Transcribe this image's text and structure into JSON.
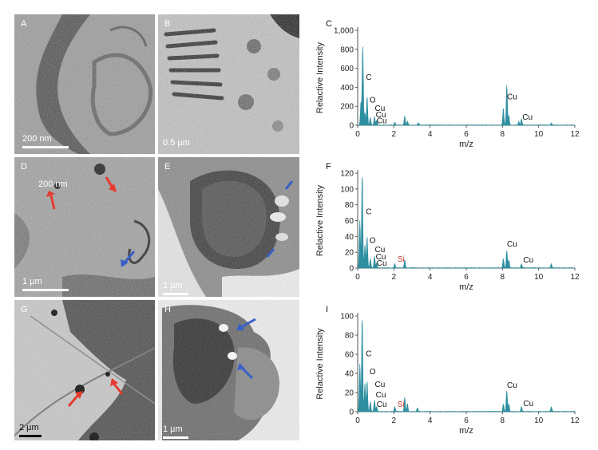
{
  "micrographs": [
    {
      "label": "A",
      "scale": "200 nm"
    },
    {
      "label": "B",
      "scale": "0.5 µm"
    },
    {
      "label": "D",
      "scale": "1 µm",
      "overlay": "200 nm"
    },
    {
      "label": "E",
      "scale": "1 µm"
    },
    {
      "label": "G",
      "scale": "2 µm"
    },
    {
      "label": "H",
      "scale": "1 µm"
    }
  ],
  "colors": {
    "spectrum": "#2e8fa0",
    "red_arrow": "#e53b2f",
    "blue_arrow": "#3a5fc7",
    "si_label": "#c0392b",
    "axis": "#555555"
  },
  "chart_data": [
    {
      "type": "area",
      "panel": "C",
      "xlabel": "m/z",
      "ylabel": "Relactive Intensity",
      "xlim": [
        0,
        12
      ],
      "ylim": [
        0,
        1000
      ],
      "xticks": [
        0,
        2,
        4,
        6,
        8,
        10,
        12
      ],
      "yticks": [
        "0",
        "200",
        "400",
        "600",
        "800",
        "1,000"
      ],
      "peaks": [
        [
          0.18,
          240
        ],
        [
          0.28,
          850
        ],
        [
          0.4,
          130
        ],
        [
          0.52,
          300
        ],
        [
          0.7,
          80
        ],
        [
          0.93,
          90
        ],
        [
          1.05,
          50
        ],
        [
          2.05,
          30
        ],
        [
          2.6,
          95
        ],
        [
          2.75,
          45
        ],
        [
          3.35,
          25
        ],
        [
          8.05,
          180
        ],
        [
          8.24,
          430
        ],
        [
          8.35,
          100
        ],
        [
          8.9,
          40
        ],
        [
          9.05,
          65
        ],
        [
          10.7,
          22
        ]
      ],
      "annotations": [
        {
          "text": "C",
          "x": 0.45,
          "y": 480
        },
        {
          "text": "O",
          "x": 0.65,
          "y": 240
        },
        {
          "text": "Cu",
          "x": 0.95,
          "y": 150
        },
        {
          "text": "Cu",
          "x": 1.0,
          "y": 85
        },
        {
          "text": "Cu",
          "x": 1.05,
          "y": 20
        },
        {
          "text": "Cu",
          "x": 8.25,
          "y": 275
        },
        {
          "text": "Cu",
          "x": 9.1,
          "y": 60
        }
      ]
    },
    {
      "type": "area",
      "panel": "F",
      "xlabel": "m/z",
      "ylabel": "Relactive Intensity",
      "xlim": [
        0,
        12
      ],
      "ylim": [
        0,
        120
      ],
      "xticks": [
        0,
        2,
        4,
        6,
        8,
        10,
        12
      ],
      "yticks": [
        "0",
        "20",
        "40",
        "60",
        "80",
        "100",
        "120"
      ],
      "peaks": [
        [
          0.12,
          60
        ],
        [
          0.25,
          120
        ],
        [
          0.4,
          30
        ],
        [
          0.52,
          40
        ],
        [
          0.7,
          12
        ],
        [
          0.93,
          15
        ],
        [
          1.05,
          6
        ],
        [
          2.05,
          5
        ],
        [
          2.6,
          10
        ],
        [
          8.05,
          12
        ],
        [
          8.24,
          22
        ],
        [
          8.35,
          10
        ],
        [
          9.05,
          5
        ],
        [
          10.7,
          5
        ]
      ],
      "annotations": [
        {
          "text": "C",
          "x": 0.45,
          "y": 68
        },
        {
          "text": "O",
          "x": 0.65,
          "y": 32
        },
        {
          "text": "Cu",
          "x": 0.95,
          "y": 20
        },
        {
          "text": "Cu",
          "x": 1.0,
          "y": 11
        },
        {
          "text": "Cu",
          "x": 1.05,
          "y": 3
        },
        {
          "text": "Si",
          "x": 2.2,
          "y": 8,
          "color": "si"
        },
        {
          "text": "Cu",
          "x": 8.25,
          "y": 27
        },
        {
          "text": "Cu",
          "x": 9.15,
          "y": 7
        }
      ]
    },
    {
      "type": "area",
      "panel": "I",
      "xlabel": "m/z",
      "ylabel": "Relactive Intensity",
      "xlim": [
        0,
        12
      ],
      "ylim": [
        0,
        100
      ],
      "xticks": [
        0,
        2,
        4,
        6,
        8,
        10,
        12
      ],
      "yticks": [
        "0",
        "20",
        "40",
        "60",
        "80",
        "100"
      ],
      "peaks": [
        [
          0.12,
          50
        ],
        [
          0.25,
          100
        ],
        [
          0.4,
          30
        ],
        [
          0.52,
          32
        ],
        [
          0.7,
          10
        ],
        [
          0.93,
          12
        ],
        [
          1.05,
          5
        ],
        [
          2.05,
          5
        ],
        [
          2.6,
          15
        ],
        [
          2.75,
          8
        ],
        [
          3.3,
          4
        ],
        [
          8.05,
          8
        ],
        [
          8.24,
          22
        ],
        [
          8.35,
          8
        ],
        [
          9.05,
          5
        ],
        [
          10.7,
          5
        ]
      ],
      "annotations": [
        {
          "text": "C",
          "x": 0.45,
          "y": 58
        },
        {
          "text": "O",
          "x": 0.65,
          "y": 39
        },
        {
          "text": "Cu",
          "x": 0.95,
          "y": 26
        },
        {
          "text": "Cu",
          "x": 1.0,
          "y": 15
        },
        {
          "text": "Cu",
          "x": 1.05,
          "y": 5
        },
        {
          "text": "Si",
          "x": 2.2,
          "y": 5,
          "color": "si"
        },
        {
          "text": "Cu",
          "x": 8.25,
          "y": 25
        },
        {
          "text": "Cu",
          "x": 9.15,
          "y": 6
        }
      ]
    }
  ]
}
